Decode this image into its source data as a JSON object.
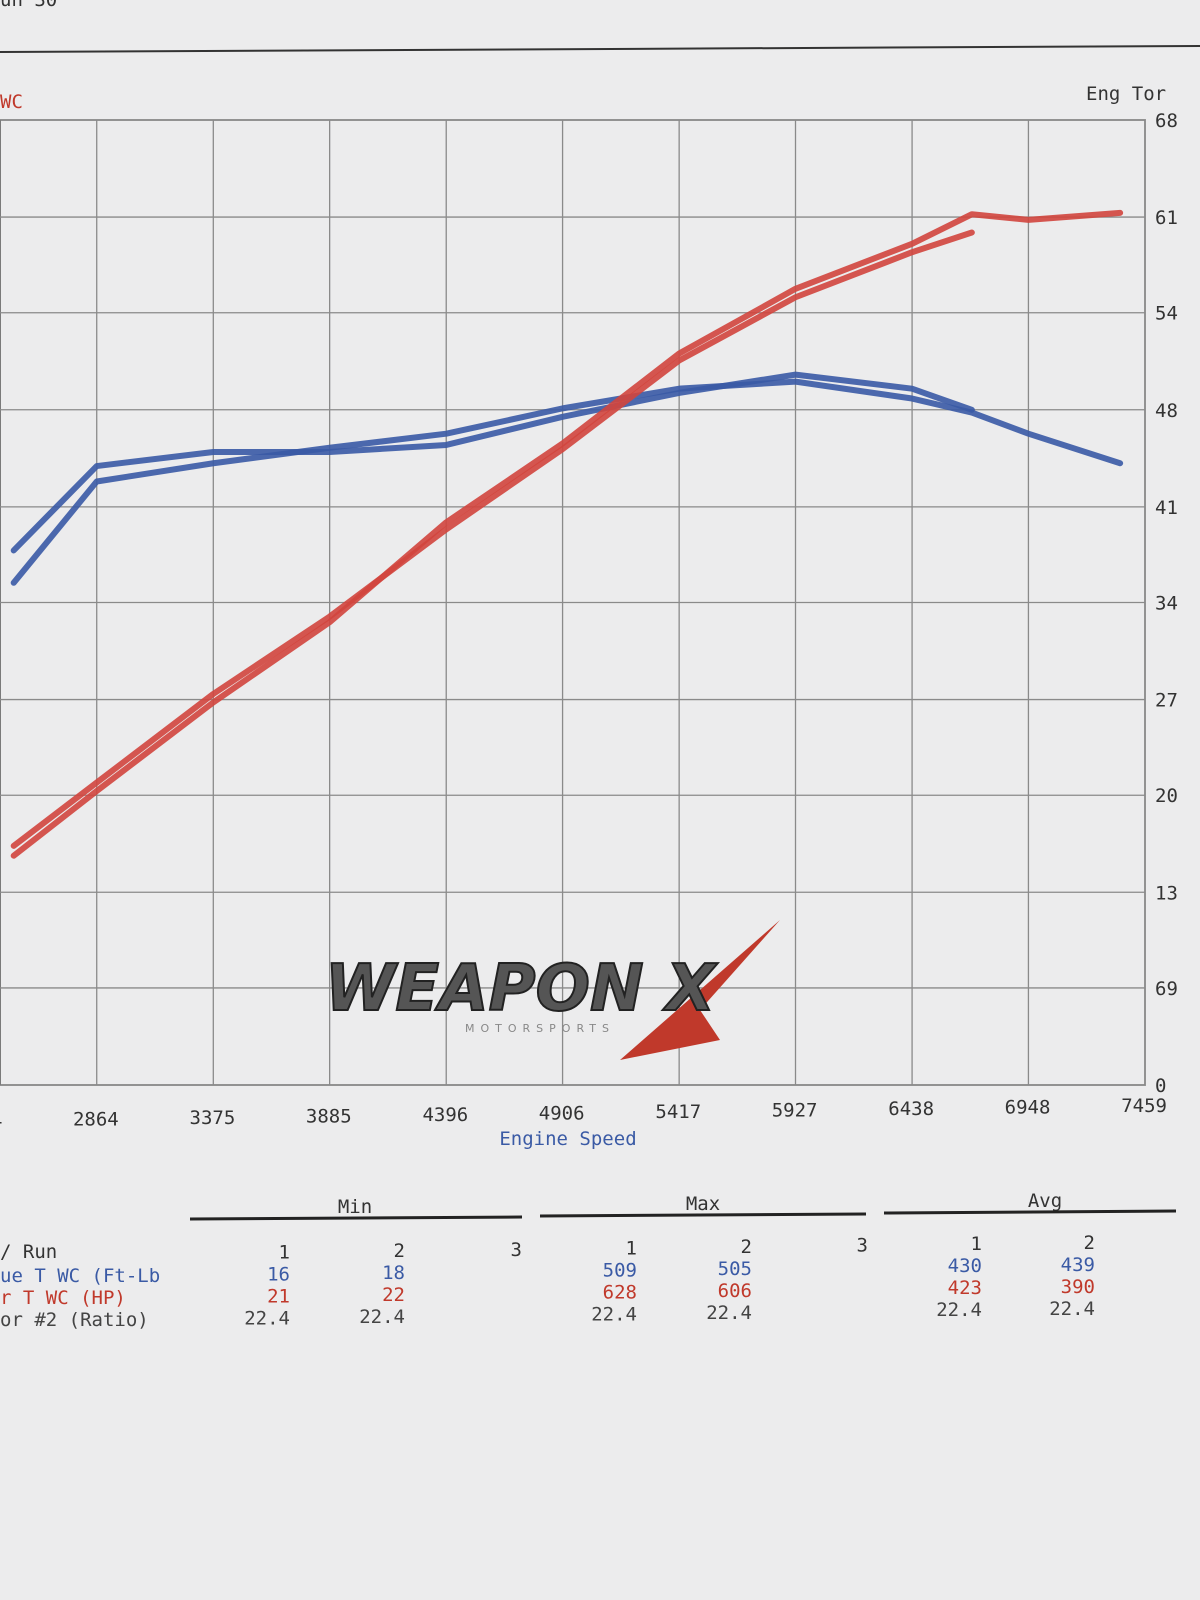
{
  "header_text": "un 30",
  "chart_data": {
    "type": "line",
    "title_left": "WC",
    "title_right": "Eng Tor",
    "x_label": "Engine Speed",
    "x": [
      2500,
      2864,
      3375,
      3885,
      4396,
      4906,
      5417,
      5927,
      6438,
      6700,
      6948,
      7350
    ],
    "series": [
      {
        "color": "#3a5aa5",
        "values": [
          357,
          429,
          442,
          453,
          463,
          481,
          495,
          500,
          488,
          478,
          463,
          442
        ]
      },
      {
        "color": "#3a5aa5",
        "values": [
          380,
          440,
          450,
          450,
          455,
          475,
          492,
          505,
          495,
          480,
          null,
          null
        ]
      },
      {
        "color": "#d2453d",
        "values": [
          163,
          209,
          272,
          329,
          400,
          456,
          520,
          566,
          598,
          619,
          615,
          620
        ]
      },
      {
        "color": "#d2453d",
        "values": [
          170,
          215,
          278,
          333,
          395,
          452,
          515,
          560,
          592,
          606,
          null,
          null
        ]
      }
    ],
    "xlim": [
      2440,
      7459
    ],
    "xticks": [
      {
        "value": 2354,
        "label": "4"
      },
      2864,
      3375,
      3885,
      4396,
      4906,
      5417,
      5927,
      6438,
      6948,
      7459
    ],
    "ylim": [
      0,
      686
    ],
    "yticks": [
      0,
      {
        "value": 69,
        "label": "69"
      },
      {
        "value": 137,
        "label": "13"
      },
      {
        "value": 206,
        "label": "20"
      },
      {
        "value": 274,
        "label": "27"
      },
      {
        "value": 343,
        "label": "34"
      },
      {
        "value": 411,
        "label": "41"
      },
      {
        "value": 480,
        "label": "48"
      },
      {
        "value": 549,
        "label": "54"
      },
      {
        "value": 617,
        "label": "61"
      },
      {
        "value": 686,
        "label": "68"
      }
    ],
    "grid": true
  },
  "logo": {
    "title": "WEAPON X",
    "subtitle": "MOTORSPORTS"
  },
  "table": {
    "groups": [
      "Min",
      "Max",
      "Avg"
    ],
    "rows": [
      [
        "/ Run",
        "1",
        "2",
        "3",
        "1",
        "2",
        "3",
        "1",
        "2"
      ],
      [
        "ue T WC (Ft-Lb",
        "16",
        "18",
        null,
        "509",
        "505",
        null,
        "430",
        "439"
      ],
      [
        "r T WC (HP)",
        "21",
        "22",
        null,
        "628",
        "606",
        null,
        "423",
        "390"
      ],
      [
        "or #2 (Ratio)",
        "22.4",
        "22.4",
        null,
        "22.4",
        "22.4",
        null,
        "22.4",
        "22.4"
      ]
    ]
  }
}
